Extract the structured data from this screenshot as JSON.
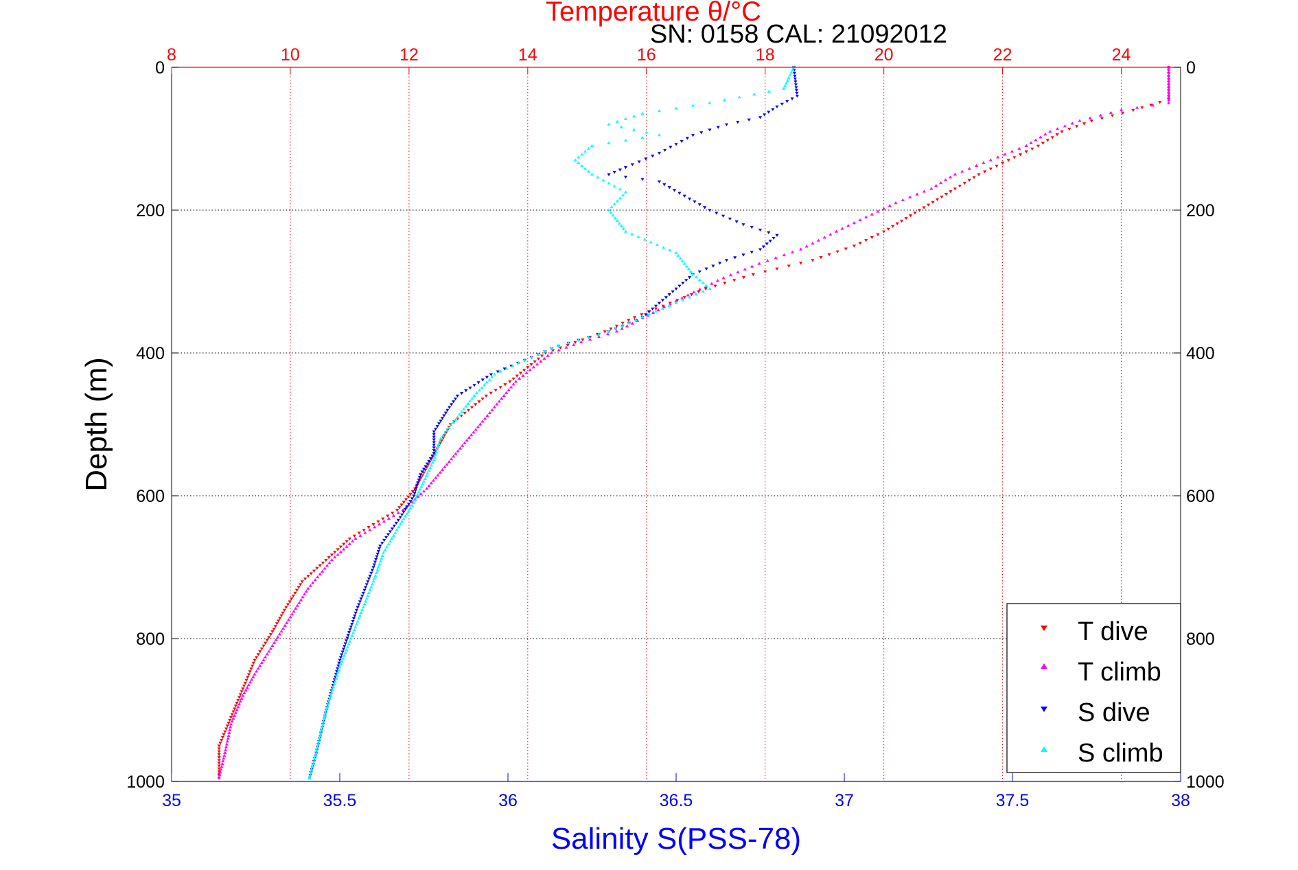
{
  "chart_data": {
    "type": "scatter",
    "title": "Temperature θ/°C",
    "subtitle": "SN: 0158  CAL: 21092012",
    "ylabel": "Depth (m)",
    "xlabel": "Salinity S(PSS-78)",
    "x_top_label": "Temperature θ/°C",
    "ylim": [
      0,
      1000
    ],
    "y_reversed": true,
    "xlim_bottom": [
      35,
      38
    ],
    "xlim_top": [
      8,
      25
    ],
    "y_ticks": [
      "0",
      "200",
      "400",
      "600",
      "800",
      "1000"
    ],
    "x_bottom_ticks": [
      "35",
      "35.5",
      "36",
      "36.5",
      "37",
      "37.5",
      "38"
    ],
    "x_top_ticks": [
      "8",
      "10",
      "12",
      "14",
      "16",
      "18",
      "20",
      "22",
      "24"
    ],
    "grid": true,
    "legend_position": "bottom-right",
    "colors": {
      "temperature_axis": "#ff0000",
      "salinity_axis": "#0000ff",
      "t_dive": "#ff0000",
      "t_climb": "#ff00ff",
      "s_dive": "#0000ff",
      "s_climb": "#00ffff"
    },
    "series": [
      {
        "name": "T dive",
        "axis": "temperature",
        "color": "#ff0000",
        "marker": "triangle-down",
        "points": [
          [
            24.8,
            0
          ],
          [
            24.8,
            45
          ],
          [
            24.2,
            60
          ],
          [
            23.5,
            75
          ],
          [
            23.0,
            90
          ],
          [
            22.6,
            110
          ],
          [
            22.1,
            130
          ],
          [
            21.6,
            150
          ],
          [
            21.2,
            170
          ],
          [
            20.6,
            200
          ],
          [
            20.0,
            230
          ],
          [
            19.5,
            250
          ],
          [
            18.8,
            270
          ],
          [
            17.8,
            290
          ],
          [
            17.0,
            310
          ],
          [
            16.4,
            330
          ],
          [
            15.8,
            350
          ],
          [
            15.3,
            370
          ],
          [
            14.8,
            385
          ],
          [
            14.3,
            400
          ],
          [
            14.0,
            420
          ],
          [
            13.7,
            440
          ],
          [
            13.3,
            460
          ],
          [
            13.0,
            480
          ],
          [
            12.7,
            500
          ],
          [
            12.5,
            530
          ],
          [
            12.3,
            560
          ],
          [
            12.1,
            590
          ],
          [
            11.8,
            620
          ],
          [
            11.4,
            640
          ],
          [
            11.0,
            660
          ],
          [
            10.6,
            690
          ],
          [
            10.2,
            720
          ],
          [
            9.9,
            760
          ],
          [
            9.7,
            790
          ],
          [
            9.4,
            830
          ],
          [
            9.2,
            870
          ],
          [
            9.0,
            910
          ],
          [
            8.8,
            950
          ],
          [
            8.8,
            990
          ]
        ]
      },
      {
        "name": "T climb",
        "axis": "temperature",
        "color": "#ff00ff",
        "marker": "triangle-up",
        "points": [
          [
            24.8,
            0
          ],
          [
            24.8,
            50
          ],
          [
            24.0,
            60
          ],
          [
            23.3,
            75
          ],
          [
            22.8,
            90
          ],
          [
            22.4,
            110
          ],
          [
            21.8,
            130
          ],
          [
            21.2,
            150
          ],
          [
            20.8,
            170
          ],
          [
            20.2,
            190
          ],
          [
            19.7,
            210
          ],
          [
            19.2,
            230
          ],
          [
            18.6,
            255
          ],
          [
            17.9,
            275
          ],
          [
            17.3,
            295
          ],
          [
            16.8,
            315
          ],
          [
            16.2,
            340
          ],
          [
            15.5,
            370
          ],
          [
            14.9,
            385
          ],
          [
            14.4,
            400
          ],
          [
            14.1,
            420
          ],
          [
            13.8,
            440
          ],
          [
            13.6,
            460
          ],
          [
            13.4,
            480
          ],
          [
            13.2,
            500
          ],
          [
            12.9,
            530
          ],
          [
            12.6,
            560
          ],
          [
            12.3,
            590
          ],
          [
            11.9,
            620
          ],
          [
            11.5,
            640
          ],
          [
            11.1,
            660
          ],
          [
            10.7,
            690
          ],
          [
            10.3,
            730
          ],
          [
            10.0,
            770
          ],
          [
            9.7,
            810
          ],
          [
            9.4,
            850
          ],
          [
            9.2,
            880
          ],
          [
            9.0,
            920
          ],
          [
            8.9,
            960
          ],
          [
            8.8,
            995
          ]
        ]
      },
      {
        "name": "S dive",
        "axis": "salinity",
        "color": "#0000ff",
        "marker": "triangle-down",
        "points": [
          [
            36.85,
            0
          ],
          [
            36.86,
            40
          ],
          [
            36.8,
            55
          ],
          [
            36.75,
            70
          ],
          [
            36.65,
            80
          ],
          [
            36.55,
            95
          ],
          [
            36.45,
            120
          ],
          [
            36.35,
            140
          ],
          [
            36.3,
            150
          ],
          [
            36.45,
            160
          ],
          [
            36.6,
            200
          ],
          [
            36.7,
            220
          ],
          [
            36.8,
            235
          ],
          [
            36.75,
            255
          ],
          [
            36.65,
            270
          ],
          [
            36.55,
            290
          ],
          [
            36.5,
            310
          ],
          [
            36.45,
            330
          ],
          [
            36.4,
            350
          ],
          [
            36.3,
            370
          ],
          [
            36.15,
            390
          ],
          [
            36.05,
            410
          ],
          [
            35.95,
            430
          ],
          [
            35.85,
            460
          ],
          [
            35.82,
            480
          ],
          [
            35.78,
            510
          ],
          [
            35.78,
            540
          ],
          [
            35.74,
            570
          ],
          [
            35.72,
            600
          ],
          [
            35.68,
            630
          ],
          [
            35.62,
            670
          ],
          [
            35.6,
            700
          ],
          [
            35.55,
            760
          ],
          [
            35.5,
            830
          ],
          [
            35.46,
            900
          ],
          [
            35.43,
            960
          ],
          [
            35.41,
            995
          ]
        ]
      },
      {
        "name": "S climb",
        "axis": "salinity",
        "color": "#00ffff",
        "marker": "triangle-up",
        "points": [
          [
            36.85,
            0
          ],
          [
            36.82,
            30
          ],
          [
            36.6,
            50
          ],
          [
            36.4,
            65
          ],
          [
            36.3,
            80
          ],
          [
            36.45,
            95
          ],
          [
            36.25,
            110
          ],
          [
            36.2,
            130
          ],
          [
            36.25,
            150
          ],
          [
            36.35,
            175
          ],
          [
            36.3,
            200
          ],
          [
            36.35,
            230
          ],
          [
            36.5,
            260
          ],
          [
            36.55,
            290
          ],
          [
            36.6,
            310
          ],
          [
            36.5,
            330
          ],
          [
            36.4,
            350
          ],
          [
            36.3,
            370
          ],
          [
            36.15,
            390
          ],
          [
            36.05,
            410
          ],
          [
            35.96,
            430
          ],
          [
            35.9,
            460
          ],
          [
            35.85,
            490
          ],
          [
            35.8,
            520
          ],
          [
            35.78,
            550
          ],
          [
            35.75,
            580
          ],
          [
            35.72,
            610
          ],
          [
            35.68,
            640
          ],
          [
            35.63,
            680
          ],
          [
            35.6,
            720
          ],
          [
            35.55,
            780
          ],
          [
            35.5,
            840
          ],
          [
            35.46,
            900
          ],
          [
            35.43,
            960
          ],
          [
            35.41,
            995
          ]
        ]
      }
    ]
  }
}
